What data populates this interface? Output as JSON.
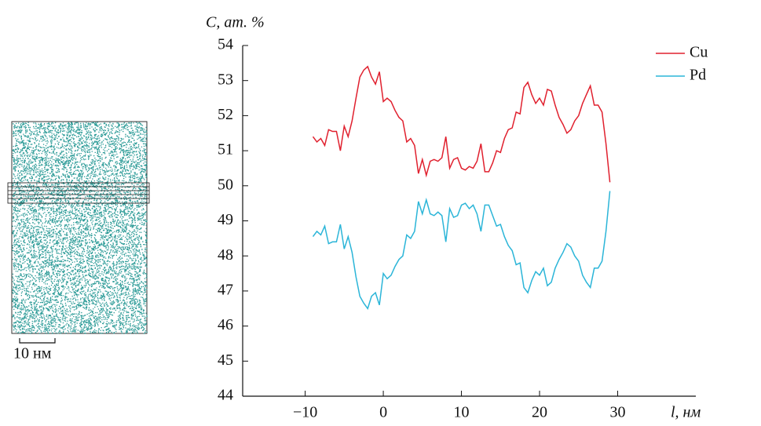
{
  "image": {
    "scale_bar": "10 нм"
  },
  "chart_data": {
    "type": "line",
    "x_label": "l, нм",
    "y_label": "C, ат. %",
    "x": [
      -9,
      -8.5,
      -8,
      -7.5,
      -7,
      -6.5,
      -6,
      -5.5,
      -5,
      -4.5,
      -4,
      -3.5,
      -3,
      -2.5,
      -2,
      -1.5,
      -1,
      -0.5,
      0,
      0.5,
      1,
      1.5,
      2,
      2.5,
      3,
      3.5,
      4,
      4.5,
      5,
      5.5,
      6,
      6.5,
      7,
      7.5,
      8,
      8.5,
      9,
      9.5,
      10,
      10.5,
      11,
      11.5,
      12,
      12.5,
      13,
      13.5,
      14,
      14.5,
      15,
      15.5,
      16,
      16.5,
      17,
      17.5,
      18,
      18.5,
      19,
      19.5,
      20,
      20.5,
      21,
      21.5,
      22,
      22.5,
      23,
      23.5,
      24,
      24.5,
      25,
      25.5,
      26,
      26.5,
      27,
      27.5,
      28,
      28.5,
      29
    ],
    "series": [
      {
        "name": "Cu",
        "color": "#e0202e",
        "values": [
          51.4,
          51.25,
          51.35,
          51.15,
          51.6,
          51.55,
          51.55,
          51.0,
          51.7,
          51.4,
          51.85,
          52.5,
          53.1,
          53.3,
          53.4,
          53.1,
          52.9,
          53.25,
          52.4,
          52.5,
          52.4,
          52.15,
          51.95,
          51.85,
          51.25,
          51.35,
          51.15,
          50.35,
          50.75,
          50.3,
          50.7,
          50.75,
          50.7,
          50.8,
          51.4,
          50.5,
          50.75,
          50.8,
          50.5,
          50.45,
          50.55,
          50.5,
          50.7,
          51.2,
          50.4,
          50.4,
          50.65,
          51.0,
          50.95,
          51.35,
          51.6,
          51.65,
          52.1,
          52.05,
          52.8,
          52.95,
          52.6,
          52.35,
          52.5,
          52.3,
          52.75,
          52.7,
          52.3,
          51.95,
          51.75,
          51.5,
          51.6,
          51.85,
          52.0,
          52.35,
          52.6,
          52.85,
          52.3,
          52.3,
          52.1,
          51.2,
          50.1
        ]
      },
      {
        "name": "Pd",
        "color": "#2bb5d8",
        "values": [
          48.55,
          48.7,
          48.6,
          48.85,
          48.35,
          48.4,
          48.4,
          48.9,
          48.2,
          48.55,
          48.1,
          47.4,
          46.85,
          46.65,
          46.5,
          46.85,
          46.95,
          46.6,
          47.5,
          47.35,
          47.45,
          47.7,
          47.9,
          48.0,
          48.6,
          48.5,
          48.7,
          49.55,
          49.2,
          49.6,
          49.2,
          49.15,
          49.25,
          49.15,
          48.4,
          49.35,
          49.1,
          49.15,
          49.45,
          49.5,
          49.35,
          49.45,
          49.2,
          48.7,
          49.45,
          49.45,
          49.15,
          48.85,
          48.9,
          48.55,
          48.3,
          48.15,
          47.75,
          47.8,
          47.1,
          46.95,
          47.3,
          47.55,
          47.45,
          47.65,
          47.15,
          47.25,
          47.65,
          47.9,
          48.1,
          48.35,
          48.25,
          48.0,
          47.85,
          47.45,
          47.25,
          47.1,
          47.65,
          47.65,
          47.85,
          48.7,
          49.85
        ]
      }
    ],
    "xlim": [
      -18,
      40
    ],
    "ylim": [
      44,
      54
    ],
    "xticks": [
      {
        "value": -10,
        "label": "−10"
      },
      0,
      10,
      20,
      30
    ],
    "yticks": [
      44,
      45,
      46,
      47,
      48,
      49,
      50,
      51,
      52,
      53,
      54
    ],
    "legend": "upper right"
  }
}
